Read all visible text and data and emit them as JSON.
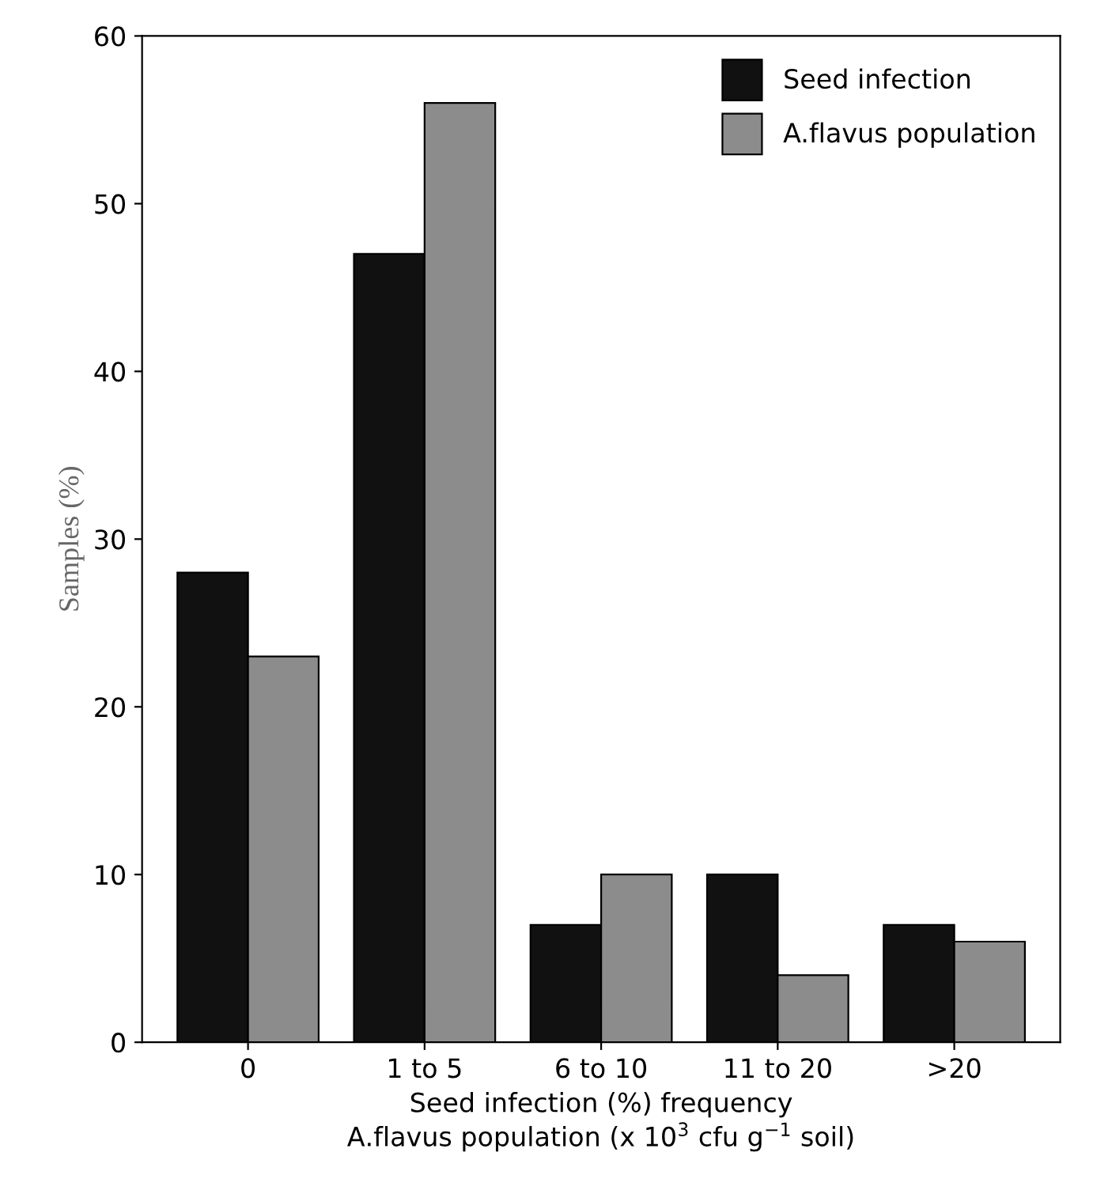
{
  "chart_data": {
    "type": "bar",
    "ylabel": "Samples (%)",
    "xlabel": "Seed infection (%) frequency\nA.flavus population (x 10$^{3}$ cfu g$^{−1}$ soil)",
    "categories": [
      "0",
      "1 to 5",
      "6 to 10",
      "11 to 20",
      ">20"
    ],
    "series": [
      {
        "name": "Seed infection",
        "color": "#111111",
        "values": [
          28,
          47,
          7,
          10,
          7
        ]
      },
      {
        "name": "A.flavus population",
        "color": "#8c8c8c",
        "values": [
          23,
          56,
          10,
          4,
          6
        ]
      }
    ],
    "ylim": [
      0,
      60
    ],
    "yticks": [
      0,
      10,
      20,
      30,
      40,
      50,
      60
    ],
    "grid": false,
    "legend": "top right"
  }
}
